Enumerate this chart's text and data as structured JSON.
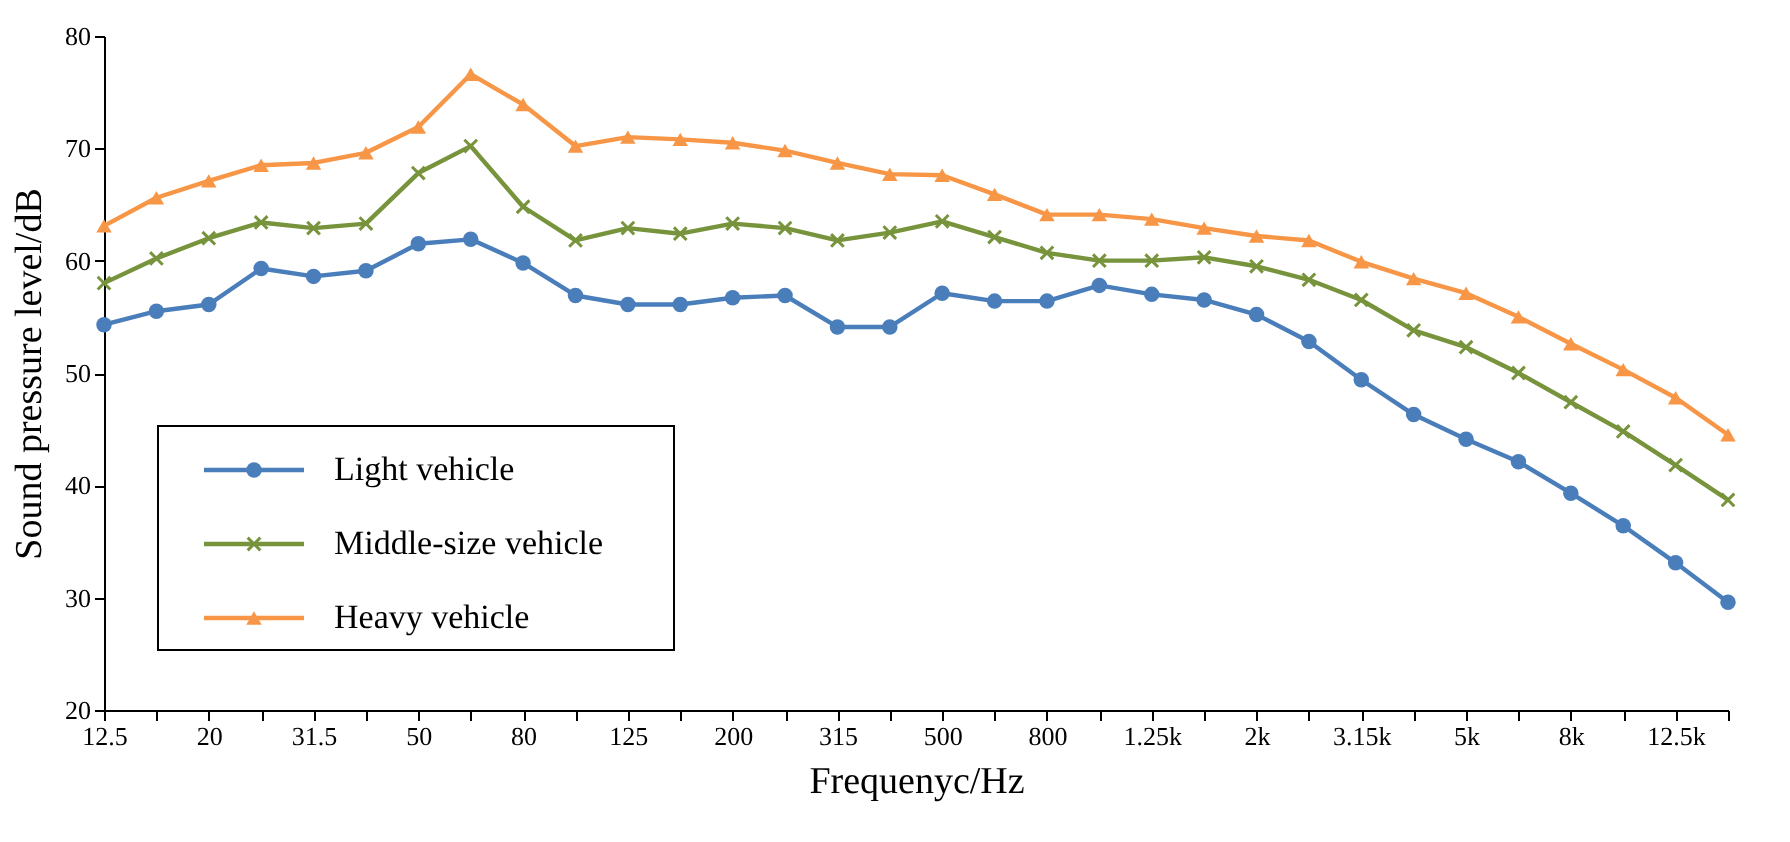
{
  "chart_data": {
    "type": "line",
    "xlabel": "Frequenyc/Hz",
    "ylabel": "Sound pressure level/dB",
    "categories": [
      "12.5",
      null,
      "20",
      null,
      "31.5",
      null,
      "50",
      null,
      "80",
      null,
      "125",
      null,
      "200",
      null,
      "315",
      null,
      "500",
      null,
      "800",
      null,
      "1.25k",
      null,
      "2k",
      null,
      "3.15k",
      null,
      "5k",
      null,
      "8k",
      null,
      "12.5k",
      null
    ],
    "ylim": [
      20,
      80
    ],
    "yticks": [
      20,
      30,
      40,
      50,
      60,
      70,
      80
    ],
    "grid": false,
    "legend": "bottom left",
    "line_style": "solid",
    "series": [
      {
        "name": "Light vehicle",
        "color": "#4a7ebb",
        "marker": "circle",
        "values": [
          54.3,
          55.5,
          56.1,
          59.3,
          58.6,
          59.1,
          61.5,
          61.9,
          59.8,
          56.9,
          56.1,
          56.1,
          56.7,
          56.9,
          54.1,
          54.1,
          57.1,
          56.4,
          56.4,
          57.8,
          57.0,
          56.5,
          55.2,
          52.8,
          49.4,
          46.3,
          44.1,
          42.1,
          39.3,
          36.4,
          33.1,
          29.6
        ]
      },
      {
        "name": "Middle-size vehicle",
        "color": "#77933c",
        "marker": "cross",
        "values": [
          58.0,
          60.2,
          62.0,
          63.4,
          62.9,
          63.3,
          67.8,
          70.2,
          64.8,
          61.8,
          62.9,
          62.4,
          63.3,
          62.9,
          61.8,
          62.5,
          63.5,
          62.1,
          60.7,
          60.0,
          60.0,
          60.3,
          59.5,
          58.3,
          56.5,
          53.8,
          52.3,
          50.0,
          47.4,
          44.8,
          41.8,
          38.7
        ]
      },
      {
        "name": "Heavy vehicle",
        "color": "#f79646",
        "marker": "triangle",
        "values": [
          63.1,
          65.6,
          67.1,
          68.5,
          68.7,
          69.6,
          71.9,
          76.6,
          73.9,
          70.2,
          71.0,
          70.8,
          70.5,
          69.8,
          68.7,
          67.7,
          67.6,
          65.9,
          64.1,
          64.1,
          63.7,
          62.9,
          62.2,
          61.8,
          59.9,
          58.4,
          57.1,
          55.0,
          52.6,
          50.3,
          47.8,
          44.5
        ]
      }
    ]
  }
}
